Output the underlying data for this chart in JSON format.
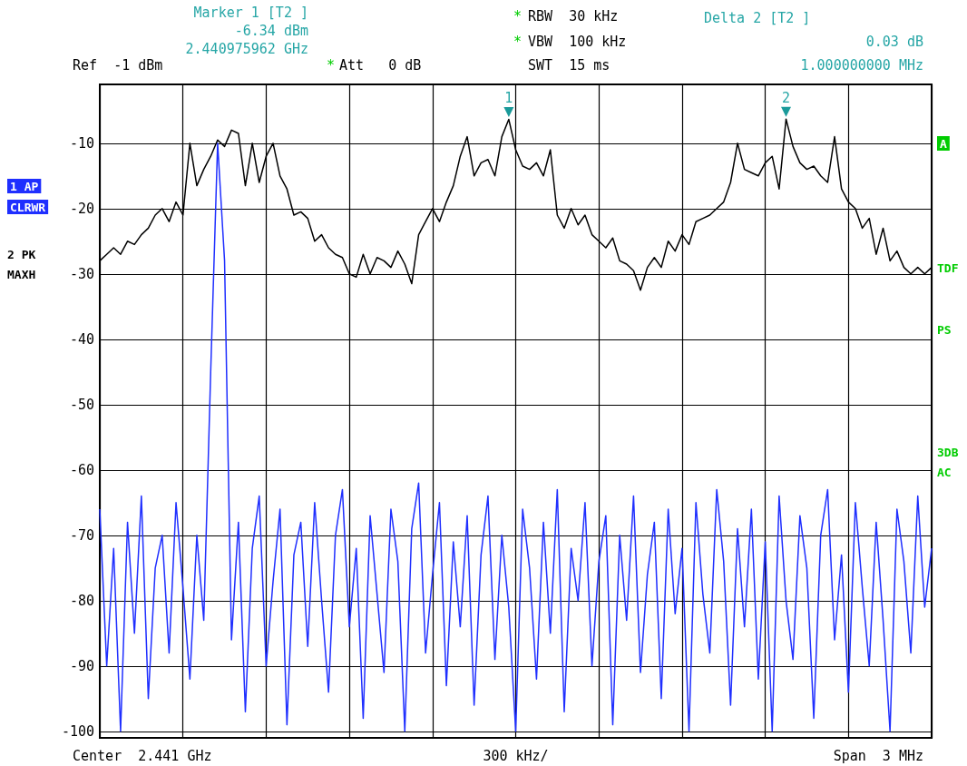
{
  "chart_data": {
    "type": "line",
    "ylim": [
      -101,
      -1
    ],
    "yticks": [
      -10,
      -20,
      -30,
      -40,
      -50,
      -60,
      -70,
      -80,
      -90,
      -100
    ],
    "grid": true,
    "tick_labels": "y",
    "categories": [
      null,
      null,
      null,
      null,
      null,
      null,
      null,
      null,
      null,
      null,
      null,
      null,
      null,
      null,
      null,
      null,
      null,
      null,
      null,
      null,
      null,
      null,
      null,
      null,
      null,
      null,
      null,
      null,
      null,
      null,
      null,
      null,
      null,
      null,
      null,
      null,
      null,
      null,
      null,
      null,
      null,
      null,
      null,
      null,
      null,
      null,
      null,
      null,
      null,
      null,
      null,
      null,
      null,
      null,
      null,
      null,
      null,
      null,
      null,
      null,
      null,
      null,
      null,
      null,
      null,
      null,
      null,
      null,
      null,
      null,
      null,
      null,
      null,
      null,
      null,
      null,
      null,
      null,
      null,
      null,
      null,
      null,
      null,
      null,
      null,
      null,
      null,
      null,
      null,
      null,
      null,
      null,
      null,
      null,
      null,
      null,
      null,
      null,
      null,
      null,
      null,
      null,
      null,
      null,
      null,
      null,
      null,
      null,
      null,
      null,
      null,
      null,
      null,
      null,
      null,
      null,
      null,
      null,
      null,
      null,
      null
    ],
    "series": [
      {
        "color": "#1f2fff",
        "values": [
          -66,
          -90,
          -72,
          -100,
          -68,
          -85,
          -64,
          -95,
          -75,
          -70,
          -88,
          -65,
          -78,
          -92,
          -70,
          -83,
          -45,
          -10,
          -28,
          -86,
          -68,
          -97,
          -72,
          -64,
          -90,
          -77,
          -66,
          -99,
          -73,
          -68,
          -87,
          -65,
          -80,
          -94,
          -70,
          -63,
          -84,
          -72,
          -98,
          -67,
          -79,
          -91,
          -66,
          -74,
          -100,
          -69,
          -62,
          -88,
          -76,
          -65,
          -93,
          -71,
          -84,
          -67,
          -96,
          -73,
          -64,
          -89,
          -70,
          -81,
          -100,
          -66,
          -75,
          -92,
          -68,
          -85,
          -63,
          -97,
          -72,
          -80,
          -65,
          -90,
          -74,
          -67,
          -99,
          -70,
          -83,
          -64,
          -91,
          -76,
          -68,
          -95,
          -66,
          -82,
          -72,
          -100,
          -65,
          -79,
          -88,
          -63,
          -74,
          -96,
          -69,
          -84,
          -66,
          -92,
          -71,
          -100,
          -64,
          -80,
          -89,
          -67,
          -75,
          -98,
          -70,
          -63,
          -86,
          -73,
          -94,
          -65,
          -78,
          -90,
          -68,
          -83,
          -100,
          -66,
          -74,
          -88,
          -64,
          -81,
          -72
        ]
      },
      {
        "color": "#000000",
        "values": [
          -28,
          -27,
          -26,
          -27,
          -25,
          -25.5,
          -24,
          -23,
          -21,
          -20,
          -22,
          -19,
          -21,
          -10,
          -16.5,
          -14,
          -12,
          -9.5,
          -10.5,
          -8,
          -8.5,
          -16.5,
          -10,
          -16,
          -12,
          -10,
          -15,
          -17,
          -21,
          -20.5,
          -21.5,
          -25,
          -24,
          -26,
          -27,
          -27.5,
          -30,
          -30.5,
          -27,
          -30,
          -27.5,
          -28,
          -29,
          -26.5,
          -28.5,
          -31.5,
          -24,
          -22,
          -20,
          -22,
          -19,
          -16.5,
          -12,
          -9,
          -15,
          -13,
          -12.5,
          -15,
          -9,
          -6.34,
          -11,
          -13.5,
          -14,
          -13,
          -15,
          -11,
          -21,
          -23,
          -20,
          -22.5,
          -21,
          -24,
          -25,
          -26,
          -24.5,
          -28,
          -28.5,
          -29.5,
          -32.5,
          -29,
          -27.5,
          -29,
          -25,
          -26.5,
          -24,
          -25.5,
          -22,
          -21.5,
          -21,
          -20,
          -19,
          -16,
          -10,
          -14,
          -14.5,
          -15,
          -13,
          -12,
          -17,
          -6.3,
          -10.5,
          -13,
          -14,
          -13.5,
          -15,
          -16,
          -9,
          -17,
          -19,
          -20,
          -23,
          -21.5,
          -27,
          -23,
          -28,
          -26.5,
          -29,
          -30,
          -29,
          -30,
          -29
        ]
      }
    ],
    "annotations": [
      "*",
      "RBW  30 kHz",
      "*",
      "VBW  100 kHz",
      "SWT  15 ms",
      "Ref  -1 dBm",
      "*",
      "Att   0 dB",
      "Delta 2 [T2 ]",
      "0.03 dB",
      "1.000000000 MHz",
      "Marker 1 [T2 ]",
      "-6.34 dBm",
      "2.440975962 GHz",
      "1 AP",
      "CLRWR",
      "2 PK",
      "MAXH",
      "A",
      "TDF",
      "PS",
      "3DB",
      "AC",
      "Center  2.441 GHz",
      "300 kHz/",
      "Span  3 MHz",
      {
        "text": "1",
        "y": -6.34
      },
      {
        "text": "2",
        "y": -6.3
      }
    ]
  }
}
